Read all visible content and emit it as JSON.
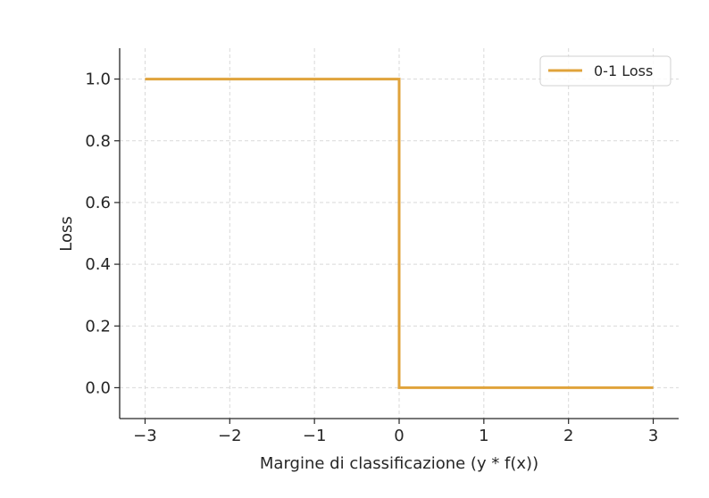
{
  "chart_data": {
    "type": "line",
    "title": "",
    "xlabel": "Margine di classificazione (y * f(x))",
    "ylabel": "Loss",
    "xlim": [
      -3.3,
      3.3
    ],
    "ylim": [
      -0.1,
      1.1
    ],
    "xticks": [
      -3,
      -2,
      -1,
      0,
      1,
      2,
      3
    ],
    "xtick_labels": [
      "−3",
      "−2",
      "−1",
      "0",
      "1",
      "2",
      "3"
    ],
    "yticks": [
      0.0,
      0.2,
      0.4,
      0.6,
      0.8,
      1.0
    ],
    "ytick_labels": [
      "0.0",
      "0.2",
      "0.4",
      "0.6",
      "0.8",
      "1.0"
    ],
    "grid": true,
    "legend_position": "top-right",
    "series": [
      {
        "name": "0-1 Loss",
        "color": "#E0A33B",
        "x": [
          -3,
          0,
          0,
          3
        ],
        "y": [
          1,
          1,
          0,
          0
        ]
      }
    ]
  }
}
